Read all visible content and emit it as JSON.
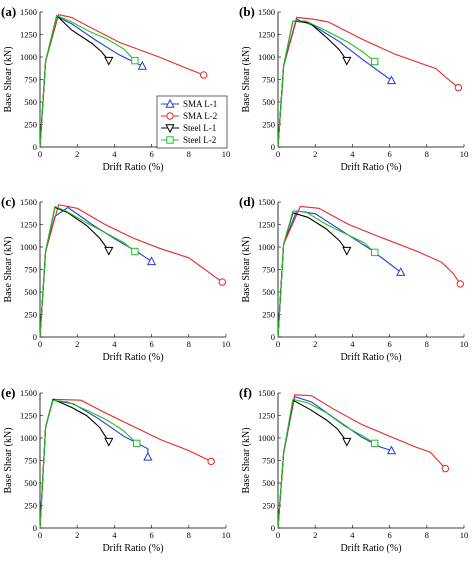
{
  "figure": {
    "legend": {
      "entries": [
        "SMA L-1",
        "SMA L-2",
        "Steel L-1",
        "Steel L-2"
      ]
    }
  },
  "colors": {
    "SMA L-1": "#1f3fd6",
    "SMA L-2": "#e8282a",
    "Steel L-1": "#000000",
    "Steel L-2": "#22c022"
  },
  "chart_data": [
    {
      "type": "line",
      "panel_label": "(a)",
      "xlabel": "Drift Ratio (%)",
      "ylabel": "Base Shear (kN)",
      "xlim": [
        0,
        10
      ],
      "ylim": [
        0,
        1500
      ],
      "xticks": [
        0,
        2,
        4,
        6,
        8,
        10
      ],
      "yticks": [
        0,
        250,
        500,
        750,
        1000,
        1250,
        1500
      ],
      "series": [
        {
          "name": "SMA L-1",
          "marker": "triangle-up",
          "x": [
            0,
            0.3,
            0.9,
            1.7,
            2.9,
            4.2,
            5.5
          ],
          "y": [
            0,
            950,
            1450,
            1370,
            1200,
            1030,
            900
          ]
        },
        {
          "name": "SMA L-2",
          "marker": "circle",
          "x": [
            0,
            0.3,
            1.0,
            1.7,
            2.7,
            4.3,
            6.4,
            7.7,
            8.8
          ],
          "y": [
            0,
            950,
            1470,
            1440,
            1330,
            1160,
            1000,
            890,
            800
          ]
        },
        {
          "name": "Steel L-1",
          "marker": "triangle-down",
          "x": [
            0,
            0.3,
            0.9,
            1.7,
            2.8,
            3.3,
            3.7
          ],
          "y": [
            0,
            950,
            1460,
            1300,
            1150,
            1060,
            960
          ]
        },
        {
          "name": "Steel L-2",
          "marker": "square",
          "x": [
            0,
            0.3,
            0.9,
            1.6,
            2.7,
            3.6,
            4.5,
            5.1
          ],
          "y": [
            0,
            950,
            1460,
            1400,
            1280,
            1200,
            1090,
            960
          ]
        }
      ]
    },
    {
      "type": "line",
      "panel_label": "(b)",
      "xlabel": "Drift Ratio (%)",
      "ylabel": "Base Shear (kN)",
      "xlim": [
        0,
        10
      ],
      "ylim": [
        0,
        1500
      ],
      "xticks": [
        0,
        2,
        4,
        6,
        8,
        10
      ],
      "yticks": [
        0,
        250,
        500,
        750,
        1000,
        1250,
        1500
      ],
      "series": [
        {
          "name": "SMA L-1",
          "marker": "triangle-up",
          "x": [
            0,
            0.3,
            1.0,
            1.9,
            3.3,
            4.5,
            6.1
          ],
          "y": [
            0,
            900,
            1420,
            1350,
            1170,
            980,
            740
          ]
        },
        {
          "name": "SMA L-2",
          "marker": "circle",
          "x": [
            0,
            0.3,
            1.0,
            1.9,
            2.7,
            4.5,
            6.3,
            8.5,
            9.1,
            9.7
          ],
          "y": [
            0,
            900,
            1440,
            1420,
            1390,
            1200,
            1030,
            870,
            760,
            660
          ]
        },
        {
          "name": "Steel L-1",
          "marker": "triangle-down",
          "x": [
            0,
            0.3,
            0.8,
            1.7,
            2.7,
            3.3,
            3.7
          ],
          "y": [
            0,
            900,
            1400,
            1380,
            1200,
            1080,
            960
          ]
        },
        {
          "name": "Steel L-2",
          "marker": "square",
          "x": [
            0,
            0.3,
            0.8,
            1.5,
            2.6,
            3.8,
            4.6,
            5.2
          ],
          "y": [
            0,
            900,
            1400,
            1400,
            1290,
            1160,
            1050,
            950
          ]
        }
      ]
    },
    {
      "type": "line",
      "panel_label": "(c)",
      "xlabel": "Drift Ratio (%)",
      "ylabel": "Base Shear (kN)",
      "xlim": [
        0,
        10
      ],
      "ylim": [
        0,
        1500
      ],
      "xticks": [
        0,
        2,
        4,
        6,
        8,
        10
      ],
      "yticks": [
        0,
        250,
        500,
        750,
        1000,
        1250,
        1500
      ],
      "series": [
        {
          "name": "SMA L-1",
          "marker": "triangle-up",
          "x": [
            0,
            0.3,
            0.8,
            1.5,
            2.8,
            4.1,
            5.2,
            6.0
          ],
          "y": [
            0,
            950,
            1340,
            1440,
            1250,
            1080,
            950,
            840
          ]
        },
        {
          "name": "SMA L-2",
          "marker": "circle",
          "x": [
            0,
            0.3,
            1.0,
            2.0,
            3.5,
            5.0,
            6.5,
            8.0,
            9.8
          ],
          "y": [
            0,
            950,
            1470,
            1430,
            1250,
            1100,
            980,
            880,
            610
          ]
        },
        {
          "name": "Steel L-1",
          "marker": "triangle-down",
          "x": [
            0,
            0.3,
            0.8,
            1.5,
            2.5,
            3.2,
            3.7
          ],
          "y": [
            0,
            950,
            1440,
            1380,
            1240,
            1100,
            960
          ]
        },
        {
          "name": "Steel L-2",
          "marker": "square",
          "x": [
            0,
            0.3,
            0.8,
            1.4,
            2.4,
            3.5,
            4.5,
            5.1
          ],
          "y": [
            0,
            950,
            1450,
            1400,
            1280,
            1160,
            1050,
            950
          ]
        }
      ]
    },
    {
      "type": "line",
      "panel_label": "(d)",
      "xlabel": "Drift Ratio (%)",
      "ylabel": "Base Shear (kN)",
      "xlim": [
        0,
        10
      ],
      "ylim": [
        0,
        1500
      ],
      "xticks": [
        0,
        2,
        4,
        6,
        8,
        10
      ],
      "yticks": [
        0,
        250,
        500,
        750,
        1000,
        1250,
        1500
      ],
      "series": [
        {
          "name": "SMA L-1",
          "marker": "triangle-up",
          "x": [
            0,
            0.3,
            1.0,
            2.0,
            3.5,
            5.0,
            6.6
          ],
          "y": [
            0,
            1030,
            1400,
            1370,
            1170,
            970,
            720
          ]
        },
        {
          "name": "SMA L-2",
          "marker": "circle",
          "x": [
            0,
            0.3,
            1.2,
            2.2,
            3.8,
            5.5,
            7.5,
            8.8,
            9.4,
            9.8
          ],
          "y": [
            0,
            1030,
            1450,
            1430,
            1250,
            1110,
            950,
            830,
            710,
            590
          ]
        },
        {
          "name": "Steel L-1",
          "marker": "triangle-down",
          "x": [
            0,
            0.3,
            0.8,
            1.6,
            2.6,
            3.3,
            3.7
          ],
          "y": [
            0,
            1030,
            1380,
            1330,
            1200,
            1070,
            960
          ]
        },
        {
          "name": "Steel L-2",
          "marker": "square",
          "x": [
            0,
            0.3,
            0.8,
            1.5,
            2.6,
            3.7,
            4.6,
            5.2
          ],
          "y": [
            0,
            1030,
            1400,
            1390,
            1250,
            1140,
            1050,
            940
          ]
        }
      ]
    },
    {
      "type": "line",
      "panel_label": "(e)",
      "xlabel": "Drift Ratio (%)",
      "ylabel": "Base Shear (kN)",
      "xlim": [
        0,
        10
      ],
      "ylim": [
        0,
        1500
      ],
      "xticks": [
        0,
        2,
        4,
        6,
        8,
        10
      ],
      "yticks": [
        0,
        250,
        500,
        750,
        1000,
        1250,
        1500
      ],
      "series": [
        {
          "name": "SMA L-1",
          "marker": "triangle-up",
          "x": [
            0,
            0.3,
            0.7,
            1.8,
            3.1,
            4.5,
            5.8,
            5.8
          ],
          "y": [
            0,
            1120,
            1420,
            1380,
            1220,
            1020,
            880,
            790
          ]
        },
        {
          "name": "SMA L-2",
          "marker": "circle",
          "x": [
            0,
            0.3,
            0.7,
            2.2,
            3.5,
            5.0,
            6.5,
            8.0,
            9.2
          ],
          "y": [
            0,
            1120,
            1430,
            1420,
            1280,
            1130,
            980,
            860,
            740
          ]
        },
        {
          "name": "Steel L-1",
          "marker": "triangle-down",
          "x": [
            0,
            0.3,
            0.7,
            1.7,
            2.5,
            3.2,
            3.7
          ],
          "y": [
            0,
            1120,
            1430,
            1340,
            1250,
            1120,
            960
          ]
        },
        {
          "name": "Steel L-2",
          "marker": "square",
          "x": [
            0,
            0.3,
            0.7,
            1.5,
            2.6,
            3.6,
            4.5,
            5.2
          ],
          "y": [
            0,
            1120,
            1420,
            1400,
            1300,
            1200,
            1080,
            940
          ]
        }
      ]
    },
    {
      "type": "line",
      "panel_label": "(f)",
      "xlabel": "Drift Ratio (%)",
      "ylabel": "Base Shear (kN)",
      "xlim": [
        0,
        10
      ],
      "ylim": [
        0,
        1500
      ],
      "xticks": [
        0,
        2,
        4,
        6,
        8,
        10
      ],
      "yticks": [
        0,
        250,
        500,
        750,
        1000,
        1250,
        1500
      ],
      "series": [
        {
          "name": "SMA L-1",
          "marker": "triangle-up",
          "x": [
            0,
            0.3,
            0.9,
            1.8,
            3.1,
            4.5,
            5.5,
            6.1
          ],
          "y": [
            0,
            830,
            1460,
            1400,
            1210,
            1010,
            900,
            860
          ]
        },
        {
          "name": "SMA L-2",
          "marker": "circle",
          "x": [
            0,
            0.3,
            0.9,
            1.8,
            3.0,
            4.5,
            6.0,
            7.4,
            8.2,
            9.0
          ],
          "y": [
            0,
            830,
            1480,
            1470,
            1320,
            1150,
            1020,
            900,
            840,
            660
          ]
        },
        {
          "name": "Steel L-1",
          "marker": "triangle-down",
          "x": [
            0,
            0.3,
            0.8,
            1.7,
            2.6,
            3.2,
            3.7
          ],
          "y": [
            0,
            830,
            1420,
            1320,
            1200,
            1100,
            960
          ]
        },
        {
          "name": "Steel L-2",
          "marker": "square",
          "x": [
            0,
            0.3,
            0.8,
            1.6,
            2.6,
            3.6,
            4.5,
            5.2
          ],
          "y": [
            0,
            830,
            1430,
            1390,
            1280,
            1130,
            1030,
            940
          ]
        }
      ]
    }
  ]
}
